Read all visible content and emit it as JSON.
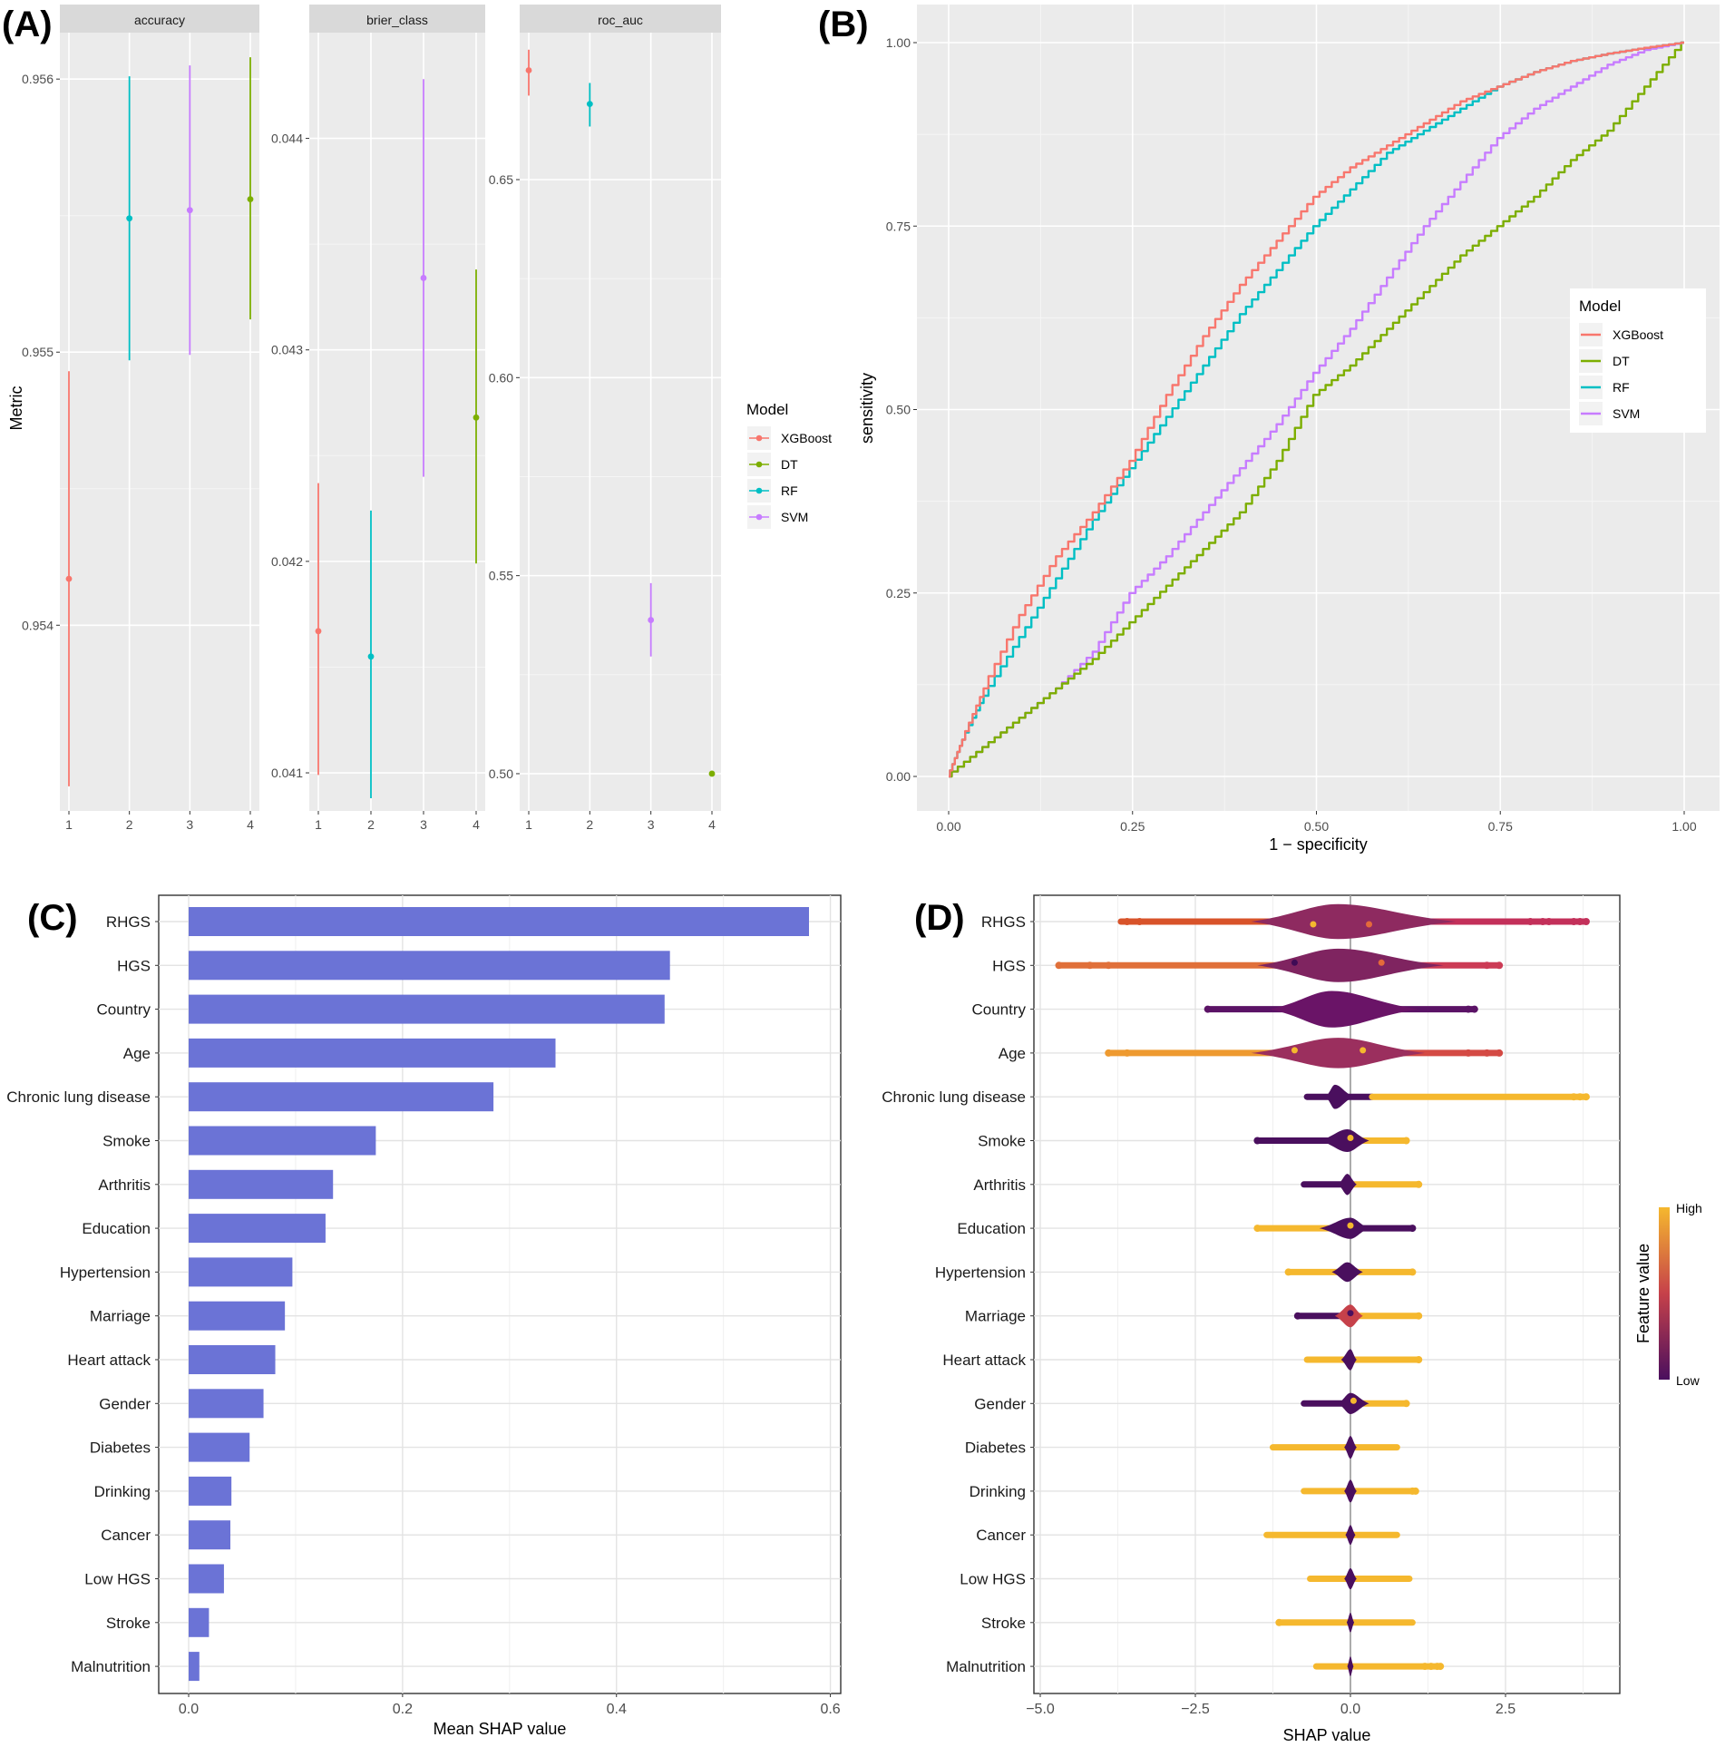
{
  "chart_data": [
    {
      "panel": "(A)",
      "type": "scatter",
      "subtype": "pointrange-facets",
      "ylabel": "Metric",
      "legend_title": "Model",
      "legend": [
        "XGBoost",
        "DT",
        "RF",
        "SVM"
      ],
      "colors": {
        "XGBoost": "#F8766D",
        "DT": "#7CAE00",
        "RF": "#00BFC4",
        "SVM": "#C77CFF"
      },
      "x_ticks": [
        "1",
        "2",
        "3",
        "4"
      ],
      "facets": [
        {
          "name": "accuracy",
          "ylim": [
            0.95332,
            0.95617
          ],
          "y_ticks": [
            0.954,
            0.955,
            0.956
          ],
          "y_tick_labels": [
            "0.954",
            "0.955",
            "0.956"
          ],
          "points": [
            {
              "x": 1,
              "model": "XGBoost",
              "y": 0.95417,
              "lo": 0.95341,
              "hi": 0.95493
            },
            {
              "x": 2,
              "model": "RF",
              "y": 0.95549,
              "lo": 0.95497,
              "hi": 0.95601
            },
            {
              "x": 3,
              "model": "SVM",
              "y": 0.95552,
              "lo": 0.95499,
              "hi": 0.95605
            },
            {
              "x": 4,
              "model": "DT",
              "y": 0.95556,
              "lo": 0.95512,
              "hi": 0.95608
            }
          ]
        },
        {
          "name": "brier_class",
          "ylim": [
            0.04082,
            0.0445
          ],
          "y_ticks": [
            0.041,
            0.042,
            0.043,
            0.044
          ],
          "y_tick_labels": [
            "0.041",
            "0.042",
            "0.043",
            "0.044"
          ],
          "points": [
            {
              "x": 1,
              "model": "XGBoost",
              "y": 0.04167,
              "lo": 0.04099,
              "hi": 0.04237
            },
            {
              "x": 2,
              "model": "RF",
              "y": 0.04155,
              "lo": 0.04088,
              "hi": 0.04224
            },
            {
              "x": 3,
              "model": "SVM",
              "y": 0.04334,
              "lo": 0.0424,
              "hi": 0.04428
            },
            {
              "x": 4,
              "model": "DT",
              "y": 0.04268,
              "lo": 0.04199,
              "hi": 0.04338
            }
          ]
        },
        {
          "name": "roc_auc",
          "ylim": [
            0.4906,
            0.6871
          ],
          "y_ticks": [
            0.5,
            0.55,
            0.6,
            0.65
          ],
          "y_tick_labels": [
            "0.50",
            "0.55",
            "0.60",
            "0.65"
          ],
          "points": [
            {
              "x": 1,
              "model": "XGBoost",
              "y": 0.6776,
              "lo": 0.6712,
              "hi": 0.6828
            },
            {
              "x": 2,
              "model": "RF",
              "y": 0.6691,
              "lo": 0.6634,
              "hi": 0.6744
            },
            {
              "x": 3,
              "model": "SVM",
              "y": 0.5388,
              "lo": 0.5296,
              "hi": 0.5481
            },
            {
              "x": 4,
              "model": "DT",
              "y": 0.5,
              "lo": 0.5,
              "hi": 0.5
            }
          ]
        }
      ]
    },
    {
      "panel": "(B)",
      "type": "line",
      "subtype": "roc-curve",
      "xlabel": "1 − specificity",
      "ylabel": "sensitivity",
      "xlim": [
        0,
        1
      ],
      "ylim": [
        0,
        1
      ],
      "x_ticks": [
        "0.00",
        "0.25",
        "0.50",
        "0.75",
        "1.00"
      ],
      "y_ticks": [
        "0.00",
        "0.25",
        "0.50",
        "0.75",
        "1.00"
      ],
      "legend_title": "Model",
      "legend": [
        "XGBoost",
        "DT",
        "RF",
        "SVM"
      ],
      "series": [
        {
          "name": "XGBoost",
          "color": "#F8766D",
          "x": [
            0,
            0.02,
            0.05,
            0.1,
            0.15,
            0.2,
            0.25,
            0.3,
            0.35,
            0.4,
            0.45,
            0.5,
            0.55,
            0.6,
            0.65,
            0.7,
            0.75,
            0.8,
            0.85,
            0.9,
            0.95,
            1.0
          ],
          "y": [
            0,
            0.05,
            0.12,
            0.22,
            0.3,
            0.36,
            0.43,
            0.52,
            0.6,
            0.67,
            0.73,
            0.79,
            0.83,
            0.86,
            0.89,
            0.92,
            0.94,
            0.96,
            0.975,
            0.985,
            0.993,
            1.0
          ]
        },
        {
          "name": "RF",
          "color": "#00BFC4",
          "x": [
            0,
            0.02,
            0.05,
            0.1,
            0.15,
            0.2,
            0.25,
            0.3,
            0.35,
            0.4,
            0.45,
            0.5,
            0.55,
            0.6,
            0.65,
            0.7,
            0.75,
            0.8,
            0.85,
            0.9,
            0.95,
            1.0
          ],
          "y": [
            0,
            0.05,
            0.11,
            0.19,
            0.27,
            0.35,
            0.42,
            0.49,
            0.56,
            0.63,
            0.69,
            0.75,
            0.8,
            0.85,
            0.88,
            0.91,
            0.94,
            0.96,
            0.975,
            0.985,
            0.993,
            1.0
          ]
        },
        {
          "name": "SVM",
          "color": "#C77CFF",
          "x": [
            0,
            0.05,
            0.1,
            0.15,
            0.2,
            0.25,
            0.3,
            0.35,
            0.4,
            0.45,
            0.5,
            0.55,
            0.6,
            0.65,
            0.7,
            0.75,
            0.8,
            0.85,
            0.9,
            0.95,
            1.0
          ],
          "y": [
            0,
            0.04,
            0.08,
            0.12,
            0.17,
            0.25,
            0.3,
            0.36,
            0.42,
            0.48,
            0.55,
            0.61,
            0.68,
            0.75,
            0.81,
            0.87,
            0.91,
            0.94,
            0.97,
            0.99,
            1.0
          ]
        },
        {
          "name": "DT",
          "color": "#7CAE00",
          "x": [
            0,
            0.05,
            0.1,
            0.15,
            0.2,
            0.25,
            0.3,
            0.35,
            0.4,
            0.45,
            0.5,
            0.55,
            0.6,
            0.65,
            0.7,
            0.75,
            0.8,
            0.85,
            0.9,
            0.95,
            1.0
          ],
          "y": [
            0,
            0.04,
            0.08,
            0.12,
            0.16,
            0.21,
            0.26,
            0.31,
            0.36,
            0.43,
            0.52,
            0.56,
            0.61,
            0.66,
            0.71,
            0.75,
            0.79,
            0.84,
            0.88,
            0.94,
            1.0
          ]
        }
      ]
    },
    {
      "panel": "(C)",
      "type": "bar",
      "orientation": "horizontal",
      "xlabel": "Mean SHAP value",
      "xlim": [
        -0.034,
        0.6
      ],
      "x_ticks": [
        0.0,
        0.2,
        0.4,
        0.6
      ],
      "x_tick_labels": [
        "0.0",
        "0.2",
        "0.4",
        "0.6"
      ],
      "color": "#6B73D6",
      "categories": [
        "RHGS",
        "HGS",
        "Country",
        "Age",
        "Chronic lung disease",
        "Smoke",
        "Arthritis",
        "Education",
        "Hypertension",
        "Marriage",
        "Heart attack",
        "Gender",
        "Diabetes",
        "Drinking",
        "Cancer",
        "Low HGS",
        "Stroke",
        "Malnutrition"
      ],
      "values": [
        0.58,
        0.45,
        0.445,
        0.343,
        0.285,
        0.175,
        0.135,
        0.128,
        0.097,
        0.09,
        0.081,
        0.07,
        0.057,
        0.04,
        0.039,
        0.033,
        0.019,
        0.01
      ]
    },
    {
      "panel": "(D)",
      "type": "scatter",
      "subtype": "shap-beeswarm",
      "xlabel": "SHAP value",
      "xlim": [
        -5.1,
        4.4
      ],
      "x_ticks": [
        -5.0,
        -2.5,
        0.0,
        2.5
      ],
      "x_tick_labels": [
        "−5.0",
        "−2.5",
        "0.0",
        "2.5"
      ],
      "colorbar_title": "Feature value",
      "colorbar_high": "High",
      "colorbar_low": "Low",
      "colors": {
        "high": "#F5B82E",
        "mid": "#C6414A",
        "low": "#4A0F5E"
      },
      "categories": [
        "RHGS",
        "HGS",
        "Country",
        "Age",
        "Chronic lung disease",
        "Smoke",
        "Arthritis",
        "Education",
        "Hypertension",
        "Marriage",
        "Heart attack",
        "Gender",
        "Diabetes",
        "Drinking",
        "Cancer",
        "Low HGS",
        "Stroke",
        "Malnutrition"
      ],
      "rows": [
        {
          "name": "RHGS",
          "min": -3.7,
          "max": 3.8,
          "body_lo": -1.6,
          "body_hi": 1.7,
          "center": -0.2,
          "width": 0.9,
          "body_color": "#8E2A60",
          "left_color": "#D8532A",
          "right_color": "#C3305A",
          "outliers": [
            -3.6,
            -3.4,
            2.9,
            3.1,
            3.2,
            3.6,
            3.7,
            3.8
          ]
        },
        {
          "name": "HGS",
          "min": -4.7,
          "max": 2.4,
          "body_lo": -1.5,
          "body_hi": 1.5,
          "center": -0.2,
          "width": 0.85,
          "body_color": "#7F2460",
          "left_color": "#E0703A",
          "right_color": "#CC3B55",
          "outliers": [
            -4.7,
            -4.2,
            -3.9,
            2.2,
            2.4
          ]
        },
        {
          "name": "Country",
          "min": -2.3,
          "max": 2.0,
          "body_lo": -1.3,
          "body_hi": 1.1,
          "center": -0.3,
          "width": 0.95,
          "body_color": "#6A1467",
          "left_color": "#5B1366",
          "right_color": "#5B1366",
          "outliers": [
            -2.3,
            1.9,
            2.0
          ]
        },
        {
          "name": "Age",
          "min": -3.9,
          "max": 2.4,
          "body_lo": -1.6,
          "body_hi": 1.2,
          "center": -0.2,
          "width": 0.75,
          "body_color": "#9B2F5E",
          "left_color": "#EE9A30",
          "right_color": "#D44A44",
          "outliers": [
            -3.9,
            -3.6,
            1.9,
            2.2,
            2.4
          ]
        },
        {
          "name": "Chronic lung disease",
          "min": -0.7,
          "max": 3.8,
          "body_lo": -0.4,
          "body_hi": 0.05,
          "center": -0.25,
          "width": 0.55,
          "body_color": "#4A0F5E",
          "left_color": "#4A0F5E",
          "right_color": "#F5B82E",
          "right_start": 0.35,
          "outliers": [
            3.6,
            3.7,
            3.8
          ]
        },
        {
          "name": "Smoke",
          "min": -1.5,
          "max": 0.9,
          "body_lo": -0.5,
          "body_hi": 0.3,
          "center": -0.05,
          "width": 0.5,
          "body_color": "#4A0F5E",
          "left_color": "#4A0F5E",
          "right_color": "#F5B82E",
          "outliers": [
            -1.5,
            0.9
          ]
        },
        {
          "name": "Arthritis",
          "min": -0.75,
          "max": 1.1,
          "body_lo": -0.2,
          "body_hi": 0.1,
          "center": -0.05,
          "width": 0.45,
          "body_color": "#4A0F5E",
          "left_color": "#4A0F5E",
          "right_color": "#F5B82E",
          "outliers": [
            1.1
          ]
        },
        {
          "name": "Education",
          "min": -1.5,
          "max": 1.0,
          "body_lo": -0.5,
          "body_hi": 0.3,
          "center": 0.0,
          "width": 0.45,
          "body_color": "#4A0F5E",
          "left_color": "#F5B82E",
          "right_color": "#4A0F5E",
          "outliers": [
            -1.5,
            1.0
          ]
        },
        {
          "name": "Hypertension",
          "min": -1.0,
          "max": 1.0,
          "body_lo": -0.3,
          "body_hi": 0.2,
          "center": -0.05,
          "width": 0.4,
          "body_color": "#4A0F5E",
          "left_color": "#F5B82E",
          "right_color": "#F5B82E",
          "outliers": [
            -1.0,
            1.0
          ]
        },
        {
          "name": "Marriage",
          "min": -0.85,
          "max": 1.1,
          "body_lo": -0.25,
          "body_hi": 0.2,
          "center": 0.0,
          "width": 0.5,
          "body_color": "#C6414A",
          "left_color": "#4A0F5E",
          "right_color": "#F5B82E",
          "outliers": [
            -0.85,
            1.1
          ]
        },
        {
          "name": "Heart attack",
          "min": -0.7,
          "max": 1.1,
          "body_lo": -0.15,
          "body_hi": 0.1,
          "center": 0.0,
          "width": 0.45,
          "body_color": "#4A0F5E",
          "left_color": "#F5B82E",
          "right_color": "#F5B82E",
          "outliers": [
            1.1
          ]
        },
        {
          "name": "Gender",
          "min": -0.75,
          "max": 0.9,
          "body_lo": -0.2,
          "body_hi": 0.3,
          "center": 0.0,
          "width": 0.45,
          "body_color": "#4A0F5E",
          "left_color": "#4A0F5E",
          "right_color": "#F5B82E",
          "outliers": [
            0.9
          ]
        },
        {
          "name": "Diabetes",
          "min": -1.25,
          "max": 0.75,
          "body_lo": -0.1,
          "body_hi": 0.1,
          "center": 0.0,
          "width": 0.5,
          "body_color": "#4A0F5E",
          "left_color": "#F5B82E",
          "right_color": "#F5B82E",
          "outliers": []
        },
        {
          "name": "Drinking",
          "min": -0.75,
          "max": 1.05,
          "body_lo": -0.1,
          "body_hi": 0.1,
          "center": 0.0,
          "width": 0.5,
          "body_color": "#4A0F5E",
          "left_color": "#F5B82E",
          "right_color": "#F5B82E",
          "outliers": [
            1.0,
            1.05
          ]
        },
        {
          "name": "Cancer",
          "min": -1.35,
          "max": 0.75,
          "body_lo": -0.08,
          "body_hi": 0.08,
          "center": 0.0,
          "width": 0.4,
          "body_color": "#4A0F5E",
          "left_color": "#F5B82E",
          "right_color": "#F5B82E",
          "outliers": []
        },
        {
          "name": "Low HGS",
          "min": -0.65,
          "max": 0.95,
          "body_lo": -0.1,
          "body_hi": 0.1,
          "center": 0.0,
          "width": 0.45,
          "body_color": "#4A0F5E",
          "left_color": "#F5B82E",
          "right_color": "#F5B82E",
          "outliers": []
        },
        {
          "name": "Stroke",
          "min": -1.15,
          "max": 1.0,
          "body_lo": -0.06,
          "body_hi": 0.06,
          "center": 0.0,
          "width": 0.4,
          "body_color": "#4A0F5E",
          "left_color": "#F5B82E",
          "right_color": "#F5B82E",
          "outliers": [
            -1.15
          ]
        },
        {
          "name": "Malnutrition",
          "min": -0.55,
          "max": 1.45,
          "body_lo": -0.05,
          "body_hi": 0.05,
          "center": 0.0,
          "width": 0.4,
          "body_color": "#4A0F5E",
          "left_color": "#F5B82E",
          "right_color": "#F5B82E",
          "outliers": [
            1.2,
            1.3,
            1.4,
            1.45
          ]
        }
      ]
    }
  ]
}
